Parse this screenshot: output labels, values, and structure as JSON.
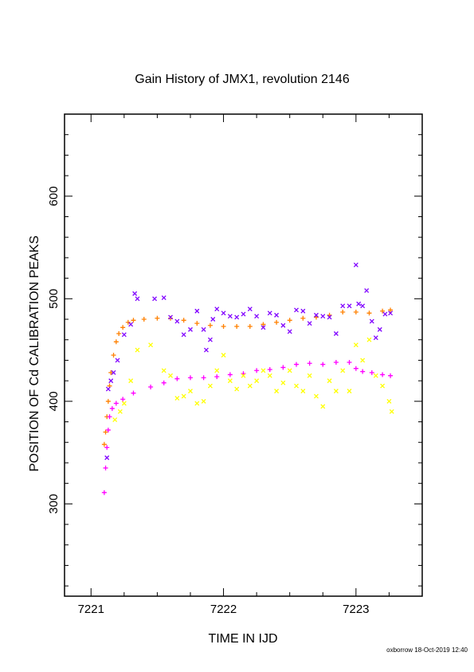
{
  "chart_data": {
    "type": "scatter",
    "title": "Gain History of JMX1, revolution 2146",
    "xlabel": "TIME IN IJD",
    "ylabel": "POSITION OF Cd CALIBRATION PEAKS",
    "xlim": [
      7220.8,
      7223.5
    ],
    "ylim": [
      210,
      680
    ],
    "xticks": [
      7221,
      7222,
      7223
    ],
    "xtick_labels": [
      "7221",
      "7222",
      "7223"
    ],
    "yticks": [
      300,
      400,
      500,
      600
    ],
    "ytick_labels": [
      "300",
      "400",
      "500",
      "600"
    ],
    "grid": false,
    "legend": "none",
    "series": [
      {
        "marker": "plus",
        "color": "#ff8000",
        "points": [
          [
            7221.1,
            358
          ],
          [
            7221.11,
            370
          ],
          [
            7221.12,
            385
          ],
          [
            7221.13,
            400
          ],
          [
            7221.14,
            415
          ],
          [
            7221.15,
            428
          ],
          [
            7221.17,
            445
          ],
          [
            7221.19,
            458
          ],
          [
            7221.21,
            466
          ],
          [
            7221.24,
            472
          ],
          [
            7221.28,
            477
          ],
          [
            7221.32,
            479
          ],
          [
            7221.4,
            480
          ],
          [
            7221.5,
            481
          ],
          [
            7221.6,
            481
          ],
          [
            7221.7,
            479
          ],
          [
            7221.8,
            476
          ],
          [
            7221.9,
            474
          ],
          [
            7222.0,
            473
          ],
          [
            7222.1,
            473
          ],
          [
            7222.2,
            473
          ],
          [
            7222.3,
            475
          ],
          [
            7222.4,
            477
          ],
          [
            7222.5,
            479
          ],
          [
            7222.6,
            481
          ],
          [
            7222.7,
            482
          ],
          [
            7222.8,
            484
          ],
          [
            7222.9,
            487
          ],
          [
            7223.0,
            487
          ],
          [
            7223.1,
            486
          ],
          [
            7223.2,
            488
          ],
          [
            7223.26,
            489
          ]
        ]
      },
      {
        "marker": "plus",
        "color": "#ff00ff",
        "points": [
          [
            7221.1,
            311
          ],
          [
            7221.11,
            335
          ],
          [
            7221.12,
            355
          ],
          [
            7221.13,
            372
          ],
          [
            7221.14,
            385
          ],
          [
            7221.16,
            393
          ],
          [
            7221.19,
            398
          ],
          [
            7221.24,
            402
          ],
          [
            7221.32,
            408
          ],
          [
            7221.45,
            414
          ],
          [
            7221.55,
            418
          ],
          [
            7221.65,
            422
          ],
          [
            7221.75,
            423
          ],
          [
            7221.85,
            423
          ],
          [
            7221.95,
            424
          ],
          [
            7222.05,
            426
          ],
          [
            7222.15,
            427
          ],
          [
            7222.25,
            430
          ],
          [
            7222.35,
            431
          ],
          [
            7222.45,
            433
          ],
          [
            7222.55,
            436
          ],
          [
            7222.65,
            437
          ],
          [
            7222.75,
            436
          ],
          [
            7222.85,
            438
          ],
          [
            7222.95,
            438
          ],
          [
            7223.0,
            432
          ],
          [
            7223.05,
            429
          ],
          [
            7223.12,
            428
          ],
          [
            7223.2,
            426
          ],
          [
            7223.26,
            425
          ]
        ]
      },
      {
        "marker": "cross",
        "color": "#8000ff",
        "points": [
          [
            7221.12,
            345
          ],
          [
            7221.13,
            412
          ],
          [
            7221.15,
            420
          ],
          [
            7221.17,
            428
          ],
          [
            7221.2,
            440
          ],
          [
            7221.25,
            465
          ],
          [
            7221.3,
            475
          ],
          [
            7221.33,
            505
          ],
          [
            7221.35,
            500
          ],
          [
            7221.48,
            500
          ],
          [
            7221.55,
            501
          ],
          [
            7221.6,
            482
          ],
          [
            7221.65,
            478
          ],
          [
            7221.7,
            465
          ],
          [
            7221.75,
            470
          ],
          [
            7221.8,
            488
          ],
          [
            7221.85,
            470
          ],
          [
            7221.87,
            450
          ],
          [
            7221.9,
            460
          ],
          [
            7221.92,
            480
          ],
          [
            7221.95,
            490
          ],
          [
            7222.0,
            486
          ],
          [
            7222.05,
            483
          ],
          [
            7222.1,
            482
          ],
          [
            7222.15,
            485
          ],
          [
            7222.2,
            490
          ],
          [
            7222.25,
            483
          ],
          [
            7222.3,
            472
          ],
          [
            7222.35,
            486
          ],
          [
            7222.4,
            484
          ],
          [
            7222.45,
            474
          ],
          [
            7222.5,
            468
          ],
          [
            7222.55,
            489
          ],
          [
            7222.6,
            488
          ],
          [
            7222.65,
            476
          ],
          [
            7222.7,
            484
          ],
          [
            7222.75,
            483
          ],
          [
            7222.8,
            482
          ],
          [
            7222.85,
            466
          ],
          [
            7222.9,
            493
          ],
          [
            7222.95,
            493
          ],
          [
            7223.0,
            533
          ],
          [
            7223.02,
            495
          ],
          [
            7223.05,
            493
          ],
          [
            7223.08,
            508
          ],
          [
            7223.12,
            478
          ],
          [
            7223.15,
            462
          ],
          [
            7223.18,
            470
          ],
          [
            7223.22,
            485
          ],
          [
            7223.26,
            486
          ]
        ]
      },
      {
        "marker": "cross",
        "color": "#ffff00",
        "points": [
          [
            7221.18,
            382
          ],
          [
            7221.22,
            390
          ],
          [
            7221.25,
            398
          ],
          [
            7221.3,
            420
          ],
          [
            7221.35,
            450
          ],
          [
            7221.45,
            455
          ],
          [
            7221.55,
            430
          ],
          [
            7221.6,
            425
          ],
          [
            7221.65,
            403
          ],
          [
            7221.7,
            405
          ],
          [
            7221.75,
            410
          ],
          [
            7221.8,
            398
          ],
          [
            7221.85,
            400
          ],
          [
            7221.9,
            415
          ],
          [
            7221.95,
            430
          ],
          [
            7222.0,
            445
          ],
          [
            7222.05,
            420
          ],
          [
            7222.1,
            412
          ],
          [
            7222.15,
            425
          ],
          [
            7222.2,
            415
          ],
          [
            7222.25,
            420
          ],
          [
            7222.3,
            430
          ],
          [
            7222.35,
            425
          ],
          [
            7222.4,
            410
          ],
          [
            7222.45,
            418
          ],
          [
            7222.5,
            430
          ],
          [
            7222.55,
            415
          ],
          [
            7222.6,
            410
          ],
          [
            7222.65,
            425
          ],
          [
            7222.7,
            405
          ],
          [
            7222.75,
            395
          ],
          [
            7222.8,
            420
          ],
          [
            7222.85,
            410
          ],
          [
            7222.9,
            430
          ],
          [
            7222.95,
            410
          ],
          [
            7223.0,
            455
          ],
          [
            7223.05,
            440
          ],
          [
            7223.1,
            460
          ],
          [
            7223.15,
            425
          ],
          [
            7223.2,
            415
          ],
          [
            7223.25,
            400
          ],
          [
            7223.27,
            390
          ]
        ]
      }
    ]
  },
  "footer": {
    "stamp": "oxborrow 18-Oct-2019 12:40"
  }
}
